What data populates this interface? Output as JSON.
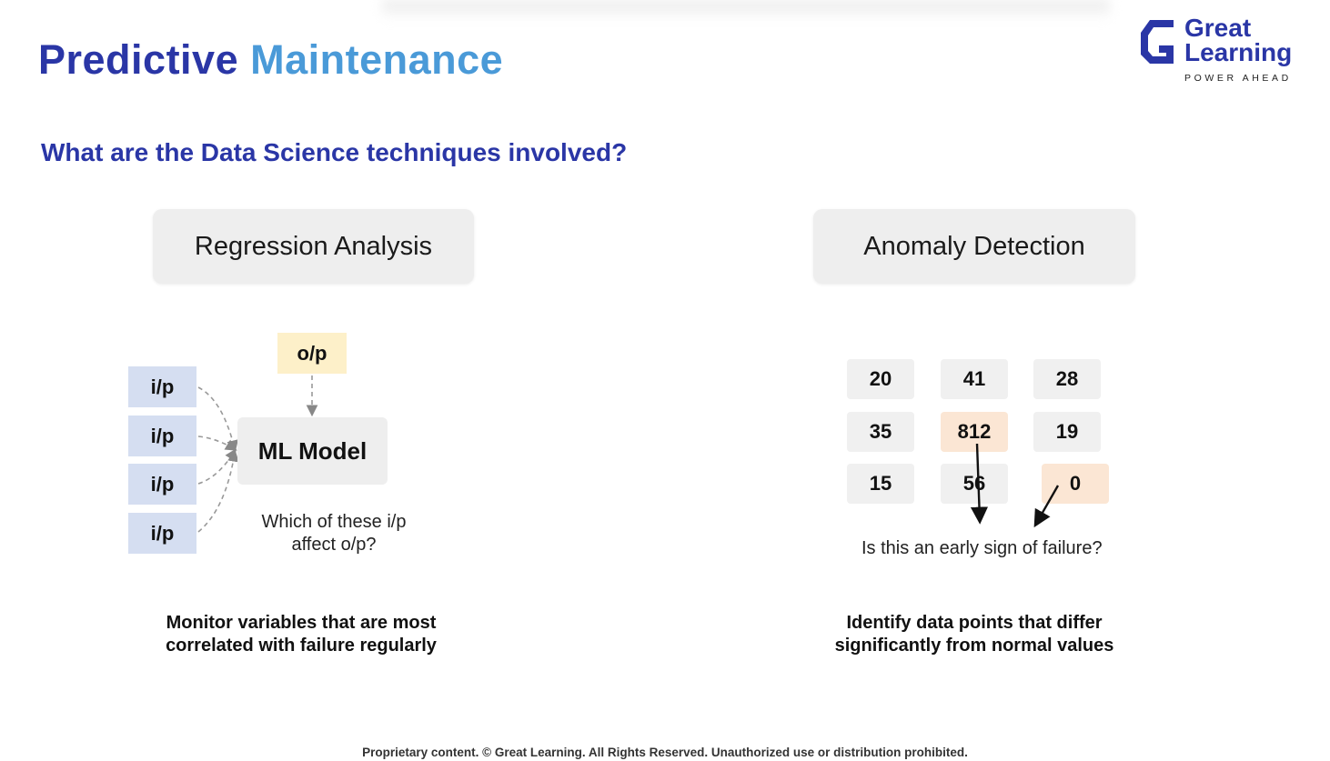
{
  "title": {
    "part1": "Predictive",
    "part2": "Maintenance"
  },
  "logo": {
    "word1": "Great",
    "word2": "Learning",
    "tagline": "POWER AHEAD",
    "icon": "great-learning-g-logo"
  },
  "subtitle": "What are the Data Science techniques involved?",
  "regression": {
    "heading": "Regression Analysis",
    "inputs": [
      "i/p",
      "i/p",
      "i/p",
      "i/p"
    ],
    "output": "o/p",
    "model": "ML Model",
    "question_line1": "Which of these i/p",
    "question_line2": "affect o/p?",
    "caption_line1": "Monitor variables that are most",
    "caption_line2": "correlated with failure regularly"
  },
  "anomaly": {
    "heading": "Anomaly Detection",
    "grid": [
      [
        "20",
        "41",
        "28"
      ],
      [
        "35",
        "812",
        "19"
      ],
      [
        "15",
        "56",
        "0"
      ]
    ],
    "highlighted": [
      "812",
      "0"
    ],
    "question": "Is this an early sign of failure?",
    "caption_line1": "Identify data points that differ",
    "caption_line2": "significantly from normal values"
  },
  "colors": {
    "title_dark": "#2a36a6",
    "title_light": "#4a9ad8",
    "input_fill": "#d5def1",
    "output_fill": "#fdf0c9",
    "anomaly_fill": "#fbe6d4"
  },
  "footer": "Proprietary content. © Great Learning. All Rights Reserved. Unauthorized use or distribution prohibited."
}
